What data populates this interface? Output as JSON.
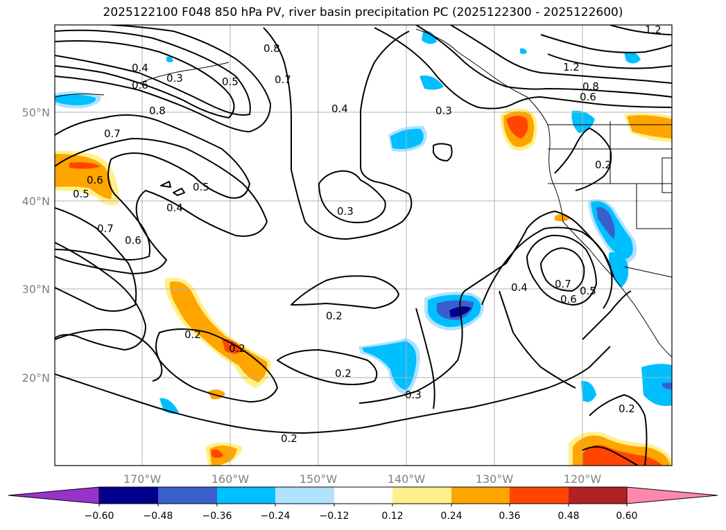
{
  "title": "2025122100 F048 850 hPa PV, river basin precipitation PC (2025122300 - 2025122600)",
  "axes": {
    "lat_labels": [
      "50°N",
      "40°N",
      "30°N",
      "20°N"
    ],
    "lon_labels": [
      "170°W",
      "160°W",
      "150°W",
      "140°W",
      "130°W",
      "120°W"
    ]
  },
  "colorbar": {
    "colors": [
      "#9932cc",
      "#00008b",
      "#3a5fcd",
      "#00bfff",
      "#b0e2ff",
      "#ffffff",
      "#fff08c",
      "#ffa500",
      "#ff4500",
      "#b22222",
      "#ff88aa"
    ],
    "ticks": [
      "−0.60",
      "−0.48",
      "−0.36",
      "−0.24",
      "−0.12",
      "0.12",
      "0.24",
      "0.36",
      "0.48",
      "0.60"
    ]
  },
  "contour_labels": [
    {
      "text": "0.4"
    },
    {
      "text": "0.6"
    },
    {
      "text": "0.3"
    },
    {
      "text": "0.5"
    },
    {
      "text": "0.8"
    },
    {
      "text": "0.8"
    },
    {
      "text": "0.7"
    },
    {
      "text": "0.4"
    },
    {
      "text": "0.3"
    },
    {
      "text": "0.8"
    },
    {
      "text": "0.6"
    },
    {
      "text": "1.2"
    },
    {
      "text": "1.2"
    },
    {
      "text": "0.7"
    },
    {
      "text": "0.6"
    },
    {
      "text": "0.5"
    },
    {
      "text": "0.5"
    },
    {
      "text": "0.4"
    },
    {
      "text": "0.7"
    },
    {
      "text": "0.6"
    },
    {
      "text": "0.3"
    },
    {
      "text": "0.2"
    },
    {
      "text": "0.2"
    },
    {
      "text": "0.2"
    },
    {
      "text": "0.2"
    },
    {
      "text": "0.2"
    },
    {
      "text": "0.3"
    },
    {
      "text": "0.4"
    },
    {
      "text": "0.7"
    },
    {
      "text": "0.6"
    },
    {
      "text": "0.5"
    },
    {
      "text": "0.2"
    },
    {
      "text": "0.2"
    }
  ]
}
